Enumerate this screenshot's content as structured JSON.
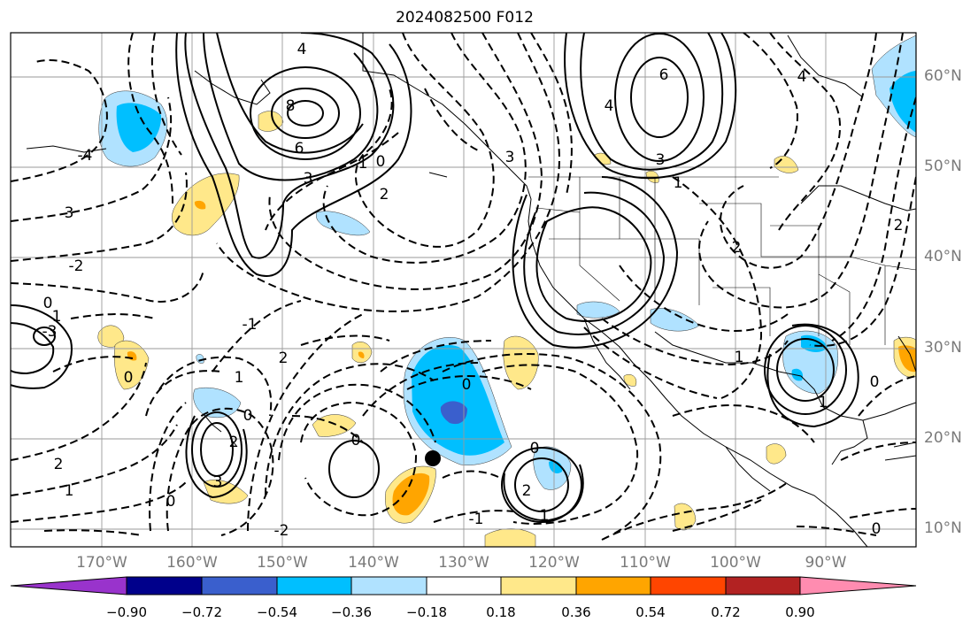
{
  "title": "2024082500 F012",
  "lat_labels": [
    "60°N",
    "50°N",
    "40°N",
    "30°N",
    "20°N",
    "10°N"
  ],
  "lon_labels": [
    "170°W",
    "160°W",
    "150°W",
    "140°W",
    "130°W",
    "120°W",
    "110°W",
    "100°W",
    "90°W"
  ],
  "colorbar": {
    "labels": [
      "−0.90",
      "−0.72",
      "−0.54",
      "−0.36",
      "−0.18",
      "0.18",
      "0.36",
      "0.54",
      "0.72",
      "0.90"
    ],
    "colors": [
      "#9933cc",
      "#00008b",
      "#3a5fcd",
      "#00bfff",
      "#b0e2ff",
      "#ffffff",
      "#ffe88a",
      "#ffa500",
      "#ff4500",
      "#b22222",
      "#ff8cb0"
    ]
  },
  "contour_labels": [
    "4",
    "8",
    "6",
    "3",
    "1",
    "0",
    "2",
    "6",
    "4",
    "3",
    "1",
    "3",
    "-4",
    "3",
    "-2",
    "0",
    "1",
    "-3",
    "-1",
    "2",
    "1",
    "0",
    "0",
    "0",
    "2",
    "0",
    "1",
    "2",
    "3",
    "-2",
    "-1",
    "0",
    "2",
    "1",
    "0",
    "1",
    "1",
    "2",
    "0",
    "2",
    "4",
    "0"
  ],
  "marker": "storm-center-dot"
}
